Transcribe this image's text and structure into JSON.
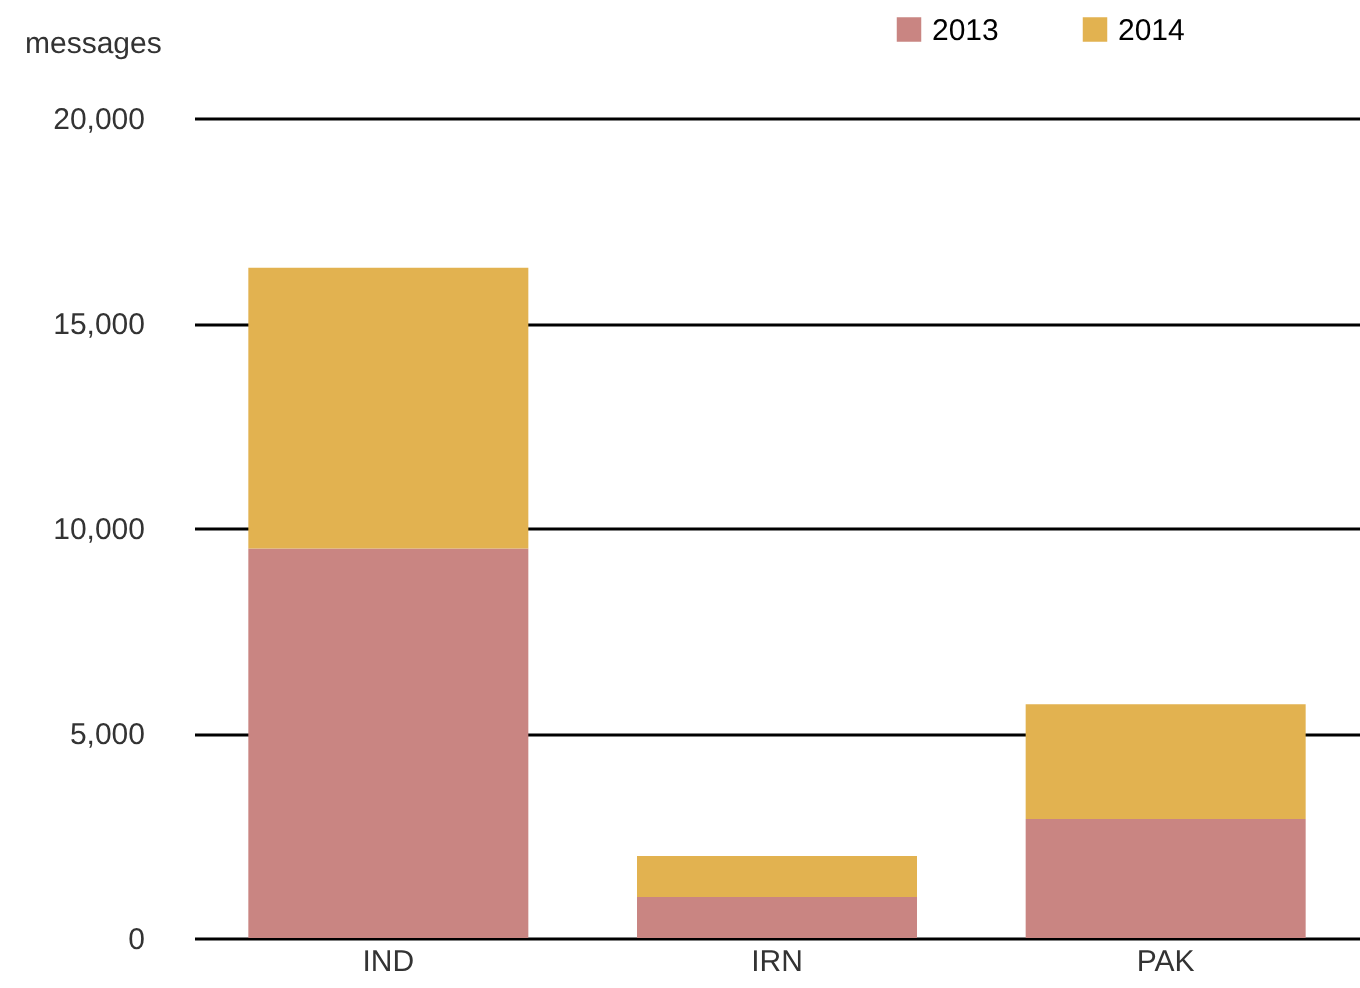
{
  "chart_data": {
    "type": "bar",
    "stacked": true,
    "ylabel": "messages",
    "categories": [
      "IND",
      "IRN",
      "PAK"
    ],
    "series": [
      {
        "name": "2013",
        "color": "#c98582",
        "values": [
          9500,
          1000,
          2900
        ]
      },
      {
        "name": "2014",
        "color": "#e2b250",
        "values": [
          6850,
          1000,
          2800
        ]
      }
    ],
    "ylim": [
      0,
      20000
    ],
    "yticks": [
      {
        "value": 0,
        "label": "0"
      },
      {
        "value": 5000,
        "label": "5,000"
      },
      {
        "value": 10000,
        "label": "10,000"
      },
      {
        "value": 15000,
        "label": "15,000"
      },
      {
        "value": 20000,
        "label": "20,000"
      }
    ],
    "grid": "y",
    "legend": "top right"
  }
}
